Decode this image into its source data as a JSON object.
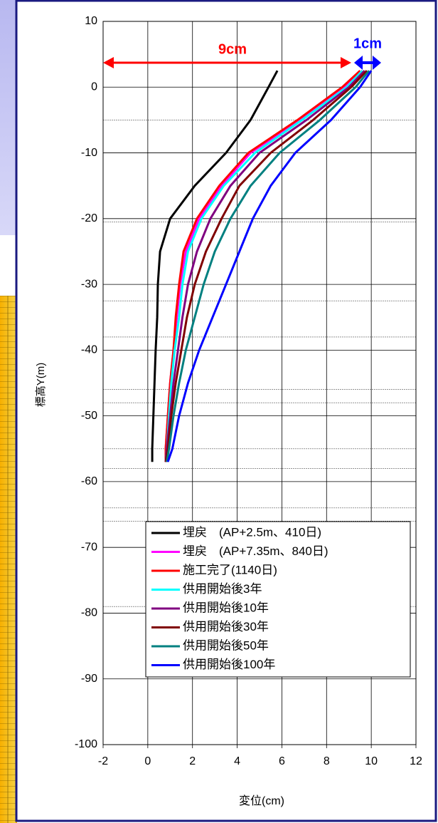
{
  "chart_data": {
    "type": "line",
    "x_label": "変位(cm)",
    "y_label": "標高Y(m)",
    "xlim": [
      -2,
      12
    ],
    "xticks": [
      -2,
      0,
      2,
      4,
      6,
      8,
      10,
      12
    ],
    "ylim": [
      -100,
      10
    ],
    "yticks": [
      10,
      0,
      -10,
      -20,
      -30,
      -40,
      -50,
      -60,
      -70,
      -80,
      -90,
      -100
    ],
    "grid": true,
    "legend": "lower right",
    "reference_lines": [
      -5,
      -20.5,
      -32.5,
      -38,
      -46,
      -48,
      -55,
      -58,
      -64,
      -66,
      -79
    ],
    "annotations": [
      "9cm",
      "1cm"
    ],
    "y": [
      2.5,
      0,
      -5,
      -10,
      -15,
      -20,
      -25,
      -30,
      -35,
      -40,
      -45,
      -50,
      -55,
      -57
    ],
    "series": [
      {
        "name": "埋戻　(AP+2.5m、410日)",
        "color": "#000000",
        "values": [
          5.8,
          5.4,
          4.6,
          3.5,
          2.1,
          1.0,
          0.55,
          0.45,
          0.42,
          0.35,
          0.3,
          0.25,
          0.2,
          0.2
        ]
      },
      {
        "name": "埋戻　(AP+7.35m、840日)",
        "color": "#ff00ff",
        "values": [
          9.6,
          8.8,
          6.8,
          4.6,
          3.3,
          2.3,
          1.7,
          1.45,
          1.3,
          1.15,
          1.0,
          0.9,
          0.8,
          0.8
        ]
      },
      {
        "name": "施工完了(1140日)",
        "color": "#ff0000",
        "values": [
          9.5,
          8.7,
          6.7,
          4.5,
          3.2,
          2.2,
          1.6,
          1.4,
          1.25,
          1.15,
          1.0,
          0.9,
          0.8,
          0.8
        ]
      },
      {
        "name": "供用開始後3年",
        "color": "#00ffff",
        "values": [
          9.6,
          8.9,
          6.9,
          4.8,
          3.4,
          2.4,
          1.8,
          1.55,
          1.4,
          1.2,
          1.05,
          0.95,
          0.85,
          0.8
        ]
      },
      {
        "name": "供用開始後10年",
        "color": "#800080",
        "values": [
          9.7,
          9.0,
          7.1,
          5.0,
          3.7,
          2.8,
          2.2,
          1.8,
          1.55,
          1.35,
          1.15,
          1.0,
          0.85,
          0.8
        ]
      },
      {
        "name": "供用開始後30年",
        "color": "#800000",
        "values": [
          9.8,
          9.1,
          7.4,
          5.5,
          4.1,
          3.3,
          2.6,
          2.1,
          1.75,
          1.5,
          1.25,
          1.05,
          0.9,
          0.8
        ]
      },
      {
        "name": "供用開始後50年",
        "color": "#008080",
        "values": [
          9.9,
          9.3,
          7.7,
          5.9,
          4.6,
          3.7,
          3.0,
          2.5,
          2.1,
          1.7,
          1.4,
          1.15,
          0.95,
          0.85
        ]
      },
      {
        "name": "供用開始後100年",
        "color": "#0000ff",
        "values": [
          10.0,
          9.5,
          8.2,
          6.6,
          5.5,
          4.7,
          4.1,
          3.5,
          2.9,
          2.3,
          1.8,
          1.4,
          1.1,
          0.9
        ]
      }
    ]
  }
}
